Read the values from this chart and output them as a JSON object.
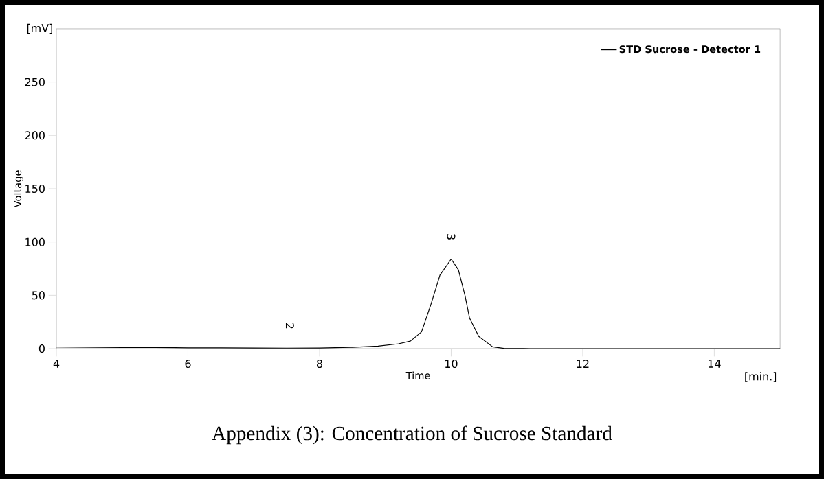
{
  "chart_data": {
    "type": "line",
    "xlabel": "Time",
    "ylabel": "Voltage",
    "x": [
      4,
      4.5,
      5,
      5.5,
      6,
      6.5,
      7,
      7.5,
      8,
      8.5,
      8.89,
      9.2,
      9.38,
      9.55,
      9.69,
      9.83,
      10,
      10.11,
      10.21,
      10.28,
      10.42,
      10.63,
      10.8,
      11.2,
      11.9,
      12.5,
      13,
      14,
      15
    ],
    "series": [
      {
        "name": "STD Sucrose - Detector 1",
        "color": "#000000",
        "values": [
          1.5,
          1.3,
          1.1,
          1,
          0.8,
          0.7,
          0.6,
          0.5,
          0.6,
          1.2,
          2.4,
          4.5,
          7,
          15.7,
          41,
          69,
          84,
          74,
          50,
          28.6,
          11.4,
          1.7,
          0.2,
          0,
          0,
          0,
          0,
          0,
          0
        ]
      }
    ],
    "xlim": [
      4,
      15
    ],
    "ylim": [
      0,
      300
    ],
    "xticks": [
      4,
      6,
      8,
      10,
      12,
      14
    ],
    "yticks": [
      0,
      50,
      100,
      150,
      200,
      250
    ],
    "annotations": [
      {
        "text": "2",
        "x": 7.55,
        "y": 0.5
      },
      {
        "text": "3",
        "x": 10,
        "y": 84
      },
      "[mV]",
      "[min.]",
      "Appendix (3): Concentration of Sucrose Standard"
    ],
    "legend": "top right",
    "marker": "none",
    "line_style": "solid",
    "grid": false
  }
}
